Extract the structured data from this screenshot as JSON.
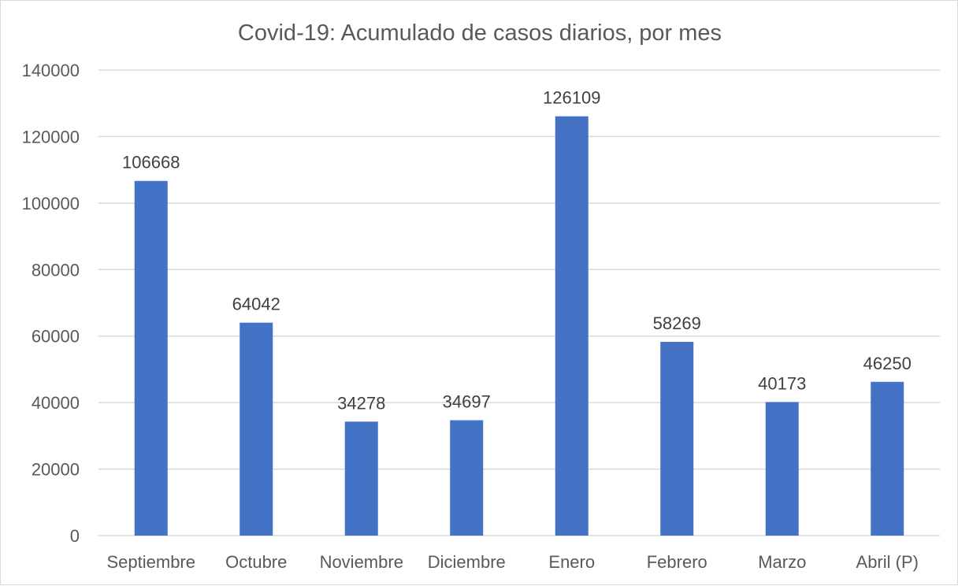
{
  "chart_data": {
    "type": "bar",
    "title": "Covid-19: Acumulado de casos diarios, por mes",
    "xlabel": "",
    "ylabel": "",
    "categories": [
      "Septiembre",
      "Octubre",
      "Noviembre",
      "Diciembre",
      "Enero",
      "Febrero",
      "Marzo",
      "Abril (P)"
    ],
    "values": [
      106668,
      64042,
      34278,
      34697,
      126109,
      58269,
      40173,
      46250
    ],
    "data_labels": [
      "106668",
      "64042",
      "34278",
      "34697",
      "126109",
      "58269",
      "40173",
      "46250"
    ],
    "ylim": [
      0,
      140000
    ],
    "yticks": [
      0,
      20000,
      40000,
      60000,
      80000,
      100000,
      120000,
      140000
    ],
    "ytick_labels": [
      "0",
      "20000",
      "40000",
      "60000",
      "80000",
      "100000",
      "120000",
      "140000"
    ],
    "grid": true,
    "legend": "none",
    "bar_color": "#4472c4"
  }
}
